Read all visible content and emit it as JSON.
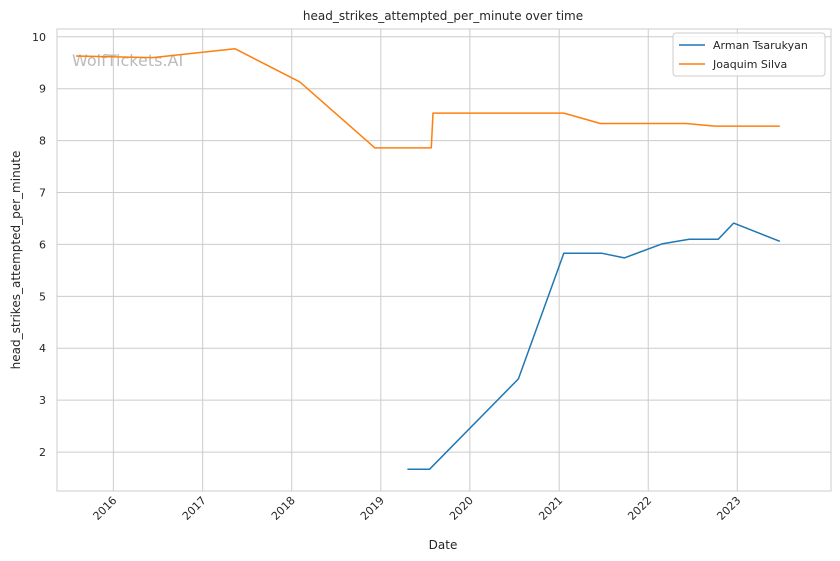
{
  "chart_data": {
    "type": "line",
    "title": "head_strikes_attempted_per_minute over time",
    "xlabel": "Date",
    "ylabel": "head_strikes_attempted_per_minute",
    "x_type": "date",
    "xlim": [
      "2015-05-15",
      "2024-01-20"
    ],
    "ylim": [
      1.25,
      10.15
    ],
    "x_ticks": [
      {
        "date": "2016-01-01",
        "label": "2016"
      },
      {
        "date": "2017-01-01",
        "label": "2017"
      },
      {
        "date": "2018-01-01",
        "label": "2018"
      },
      {
        "date": "2019-01-01",
        "label": "2019"
      },
      {
        "date": "2020-01-01",
        "label": "2020"
      },
      {
        "date": "2021-01-01",
        "label": "2021"
      },
      {
        "date": "2022-01-01",
        "label": "2022"
      },
      {
        "date": "2023-01-01",
        "label": "2023"
      }
    ],
    "y_ticks": [
      2,
      3,
      4,
      5,
      6,
      7,
      8,
      9,
      10
    ],
    "grid": true,
    "legend_position": "top-right",
    "watermark": "WolfTickets.AI",
    "series": [
      {
        "name": "Arman Tsarukyan",
        "color": "#1f77b4",
        "points": [
          {
            "x": "2019-04-20",
            "y": 1.67
          },
          {
            "x": "2019-07-20",
            "y": 1.67
          },
          {
            "x": "2020-07-18",
            "y": 3.41
          },
          {
            "x": "2021-01-20",
            "y": 5.83
          },
          {
            "x": "2021-06-26",
            "y": 5.83
          },
          {
            "x": "2021-09-25",
            "y": 5.74
          },
          {
            "x": "2022-02-26",
            "y": 6.01
          },
          {
            "x": "2022-06-18",
            "y": 6.1
          },
          {
            "x": "2022-10-15",
            "y": 6.1
          },
          {
            "x": "2022-12-17",
            "y": 6.41
          },
          {
            "x": "2023-06-24",
            "y": 6.06
          }
        ]
      },
      {
        "name": "Joaquim Silva",
        "color": "#ff7f0e",
        "points": [
          {
            "x": "2015-08-01",
            "y": 9.63
          },
          {
            "x": "2016-06-10",
            "y": 9.6
          },
          {
            "x": "2017-05-13",
            "y": 9.77
          },
          {
            "x": "2018-02-03",
            "y": 9.13
          },
          {
            "x": "2018-12-08",
            "y": 7.86
          },
          {
            "x": "2019-07-27",
            "y": 7.86
          },
          {
            "x": "2019-08-03",
            "y": 8.53
          },
          {
            "x": "2021-01-20",
            "y": 8.53
          },
          {
            "x": "2021-06-19",
            "y": 8.33
          },
          {
            "x": "2022-06-04",
            "y": 8.33
          },
          {
            "x": "2022-10-01",
            "y": 8.28
          },
          {
            "x": "2023-06-24",
            "y": 8.28
          }
        ]
      }
    ]
  }
}
